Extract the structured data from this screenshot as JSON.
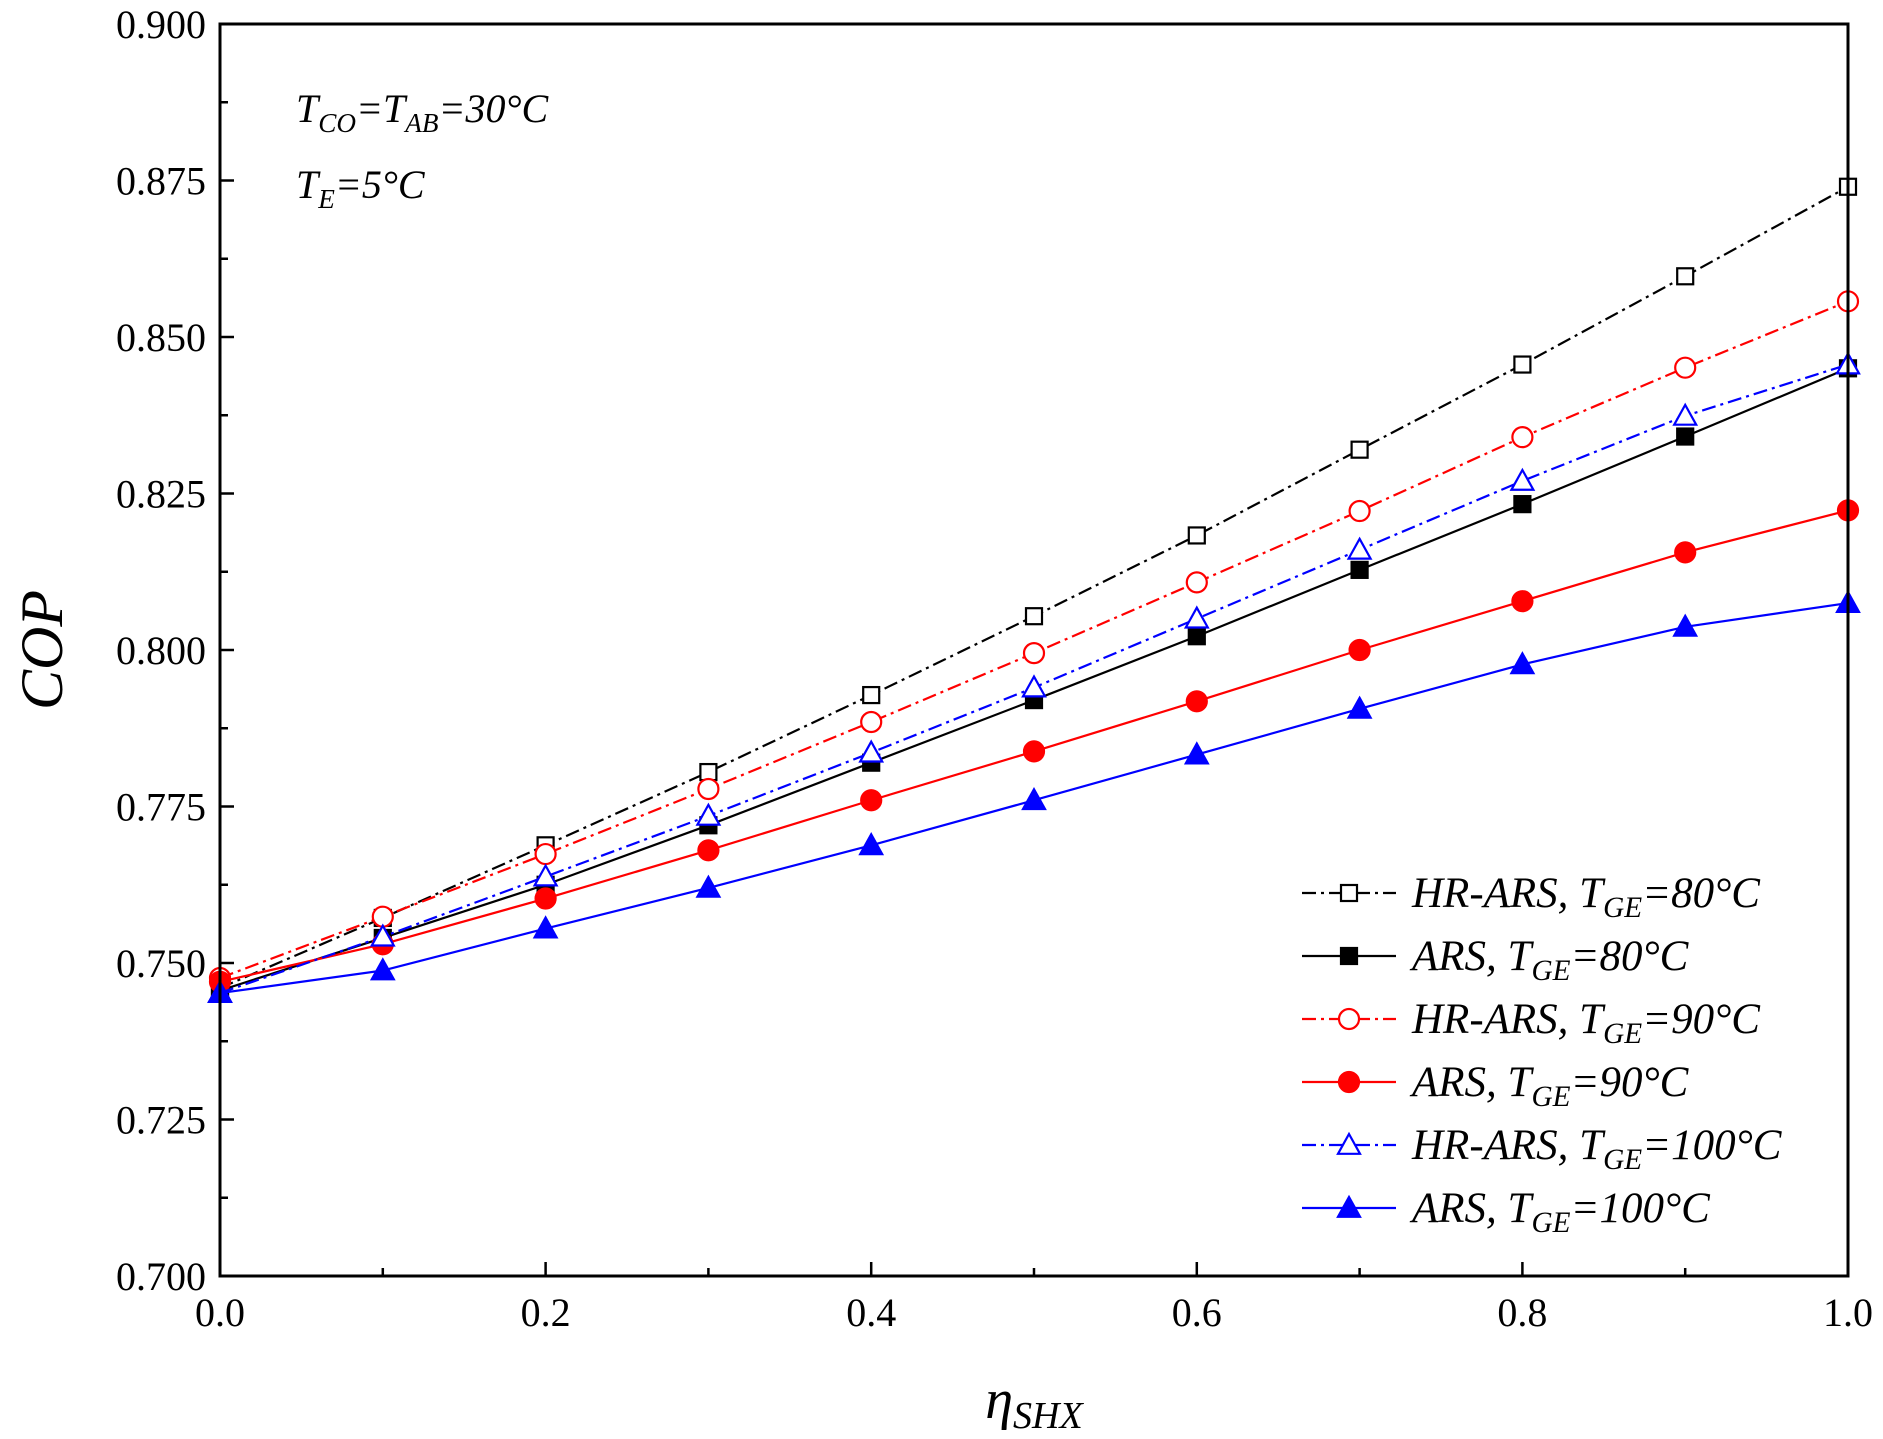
{
  "chart_data": {
    "type": "line",
    "title": "",
    "xlabel": "η",
    "xlabel_sub": "SHX",
    "ylabel": "COP",
    "xlim": [
      0.0,
      1.0
    ],
    "ylim": [
      0.7,
      0.9
    ],
    "xticks": [
      "0.0",
      "0.2",
      "0.4",
      "0.6",
      "0.8",
      "1.0"
    ],
    "yticks": [
      "0.700",
      "0.725",
      "0.750",
      "0.775",
      "0.800",
      "0.825",
      "0.850",
      "0.875",
      "0.900"
    ],
    "grid": false,
    "legend_position": "bottom-right",
    "x": [
      0.0,
      0.1,
      0.2,
      0.3,
      0.4,
      0.5,
      0.6,
      0.7,
      0.8,
      0.9,
      1.0
    ],
    "annotations": [
      {
        "parts": [
          {
            "t": "T"
          },
          {
            "t": "CO",
            "sub": true
          },
          {
            "t": "=T"
          },
          {
            "t": "AB",
            "sub": true
          },
          {
            "t": "=30°C"
          }
        ]
      },
      {
        "parts": [
          {
            "t": "T"
          },
          {
            "t": "E",
            "sub": true
          },
          {
            "t": "=5°C"
          }
        ]
      }
    ],
    "series": [
      {
        "name": "HR-ARS, TGE=80°C",
        "label_prefix": "HR-ARS, T",
        "label_sub": "GE",
        "label_suffix": "=80°C",
        "color": "#000000",
        "dash": "14,5,3,5",
        "marker": "square",
        "filled": false,
        "values": [
          0.746,
          0.7572,
          0.7688,
          0.7805,
          0.7928,
          0.8054,
          0.8183,
          0.832,
          0.8456,
          0.8597,
          0.874
        ]
      },
      {
        "name": "ARS, TGE=80°C",
        "label_prefix": "ARS, T",
        "label_sub": "GE",
        "label_suffix": "=80°C",
        "color": "#000000",
        "dash": "",
        "marker": "square",
        "filled": true,
        "values": [
          0.7456,
          0.754,
          0.7625,
          0.772,
          0.782,
          0.792,
          0.8022,
          0.8128,
          0.8233,
          0.8341,
          0.845
        ]
      },
      {
        "name": "HR-ARS, TGE=90°C",
        "label_prefix": "HR-ARS, T",
        "label_sub": "GE",
        "label_suffix": "=90°C",
        "color": "#ff0000",
        "dash": "14,5,3,5",
        "marker": "circle",
        "filled": false,
        "values": [
          0.7476,
          0.7574,
          0.7674,
          0.7778,
          0.7885,
          0.7995,
          0.8108,
          0.8222,
          0.834,
          0.8451,
          0.8557
        ]
      },
      {
        "name": "ARS, TGE=90°C",
        "label_prefix": "ARS, T",
        "label_sub": "GE",
        "label_suffix": "=90°C",
        "color": "#ff0000",
        "dash": "",
        "marker": "circle",
        "filled": true,
        "values": [
          0.747,
          0.753,
          0.7603,
          0.768,
          0.776,
          0.7838,
          0.7918,
          0.8,
          0.8078,
          0.8156,
          0.8223
        ]
      },
      {
        "name": "HR-ARS, TGE=100°C",
        "label_prefix": "HR-ARS, T",
        "label_sub": "GE",
        "label_suffix": "=100°C",
        "color": "#0000ff",
        "dash": "14,5,3,5",
        "marker": "triangle",
        "filled": false,
        "values": [
          0.7452,
          0.7542,
          0.7638,
          0.7735,
          0.7836,
          0.794,
          0.805,
          0.816,
          0.827,
          0.8374,
          0.8456
        ]
      },
      {
        "name": "ARS, TGE=100°C",
        "label_prefix": "ARS, T",
        "label_sub": "GE",
        "label_suffix": "=100°C",
        "color": "#0000ff",
        "dash": "",
        "marker": "triangle",
        "filled": true,
        "values": [
          0.7452,
          0.7488,
          0.7555,
          0.762,
          0.7688,
          0.776,
          0.7833,
          0.7906,
          0.7977,
          0.8037,
          0.8075
        ]
      }
    ]
  }
}
